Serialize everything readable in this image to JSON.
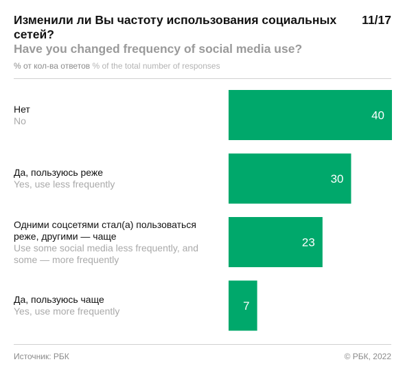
{
  "header": {
    "title_ru": "Изменили ли Вы частоту использования социальных сетей?",
    "title_en": "Have you changed frequency of social media use?",
    "page_number": "11/17",
    "units_ru": "% от кол-ва ответов",
    "units_en": "% of the total number of responses"
  },
  "chart_data": {
    "type": "bar",
    "orientation": "horizontal",
    "categories": [
      {
        "ru": "Нет",
        "en": "No"
      },
      {
        "ru": "Да, пользуюсь реже",
        "en": "Yes, use less frequently"
      },
      {
        "ru": "Одними соцсетями стал(а) пользоваться реже, другими — чаще",
        "en": "Use some social media less frequently, and some — more frequently"
      },
      {
        "ru": "Да, пользуюсь чаще",
        "en": "Yes, use more frequently"
      }
    ],
    "values": [
      40,
      30,
      23,
      7
    ],
    "xlim": [
      0,
      40
    ],
    "bar_color": "#00a86b",
    "data_label_color": "#ffffff",
    "grid": false,
    "legend": "none"
  },
  "footer": {
    "source": "Источник: РБК",
    "copyright": "© РБК, 2022"
  }
}
